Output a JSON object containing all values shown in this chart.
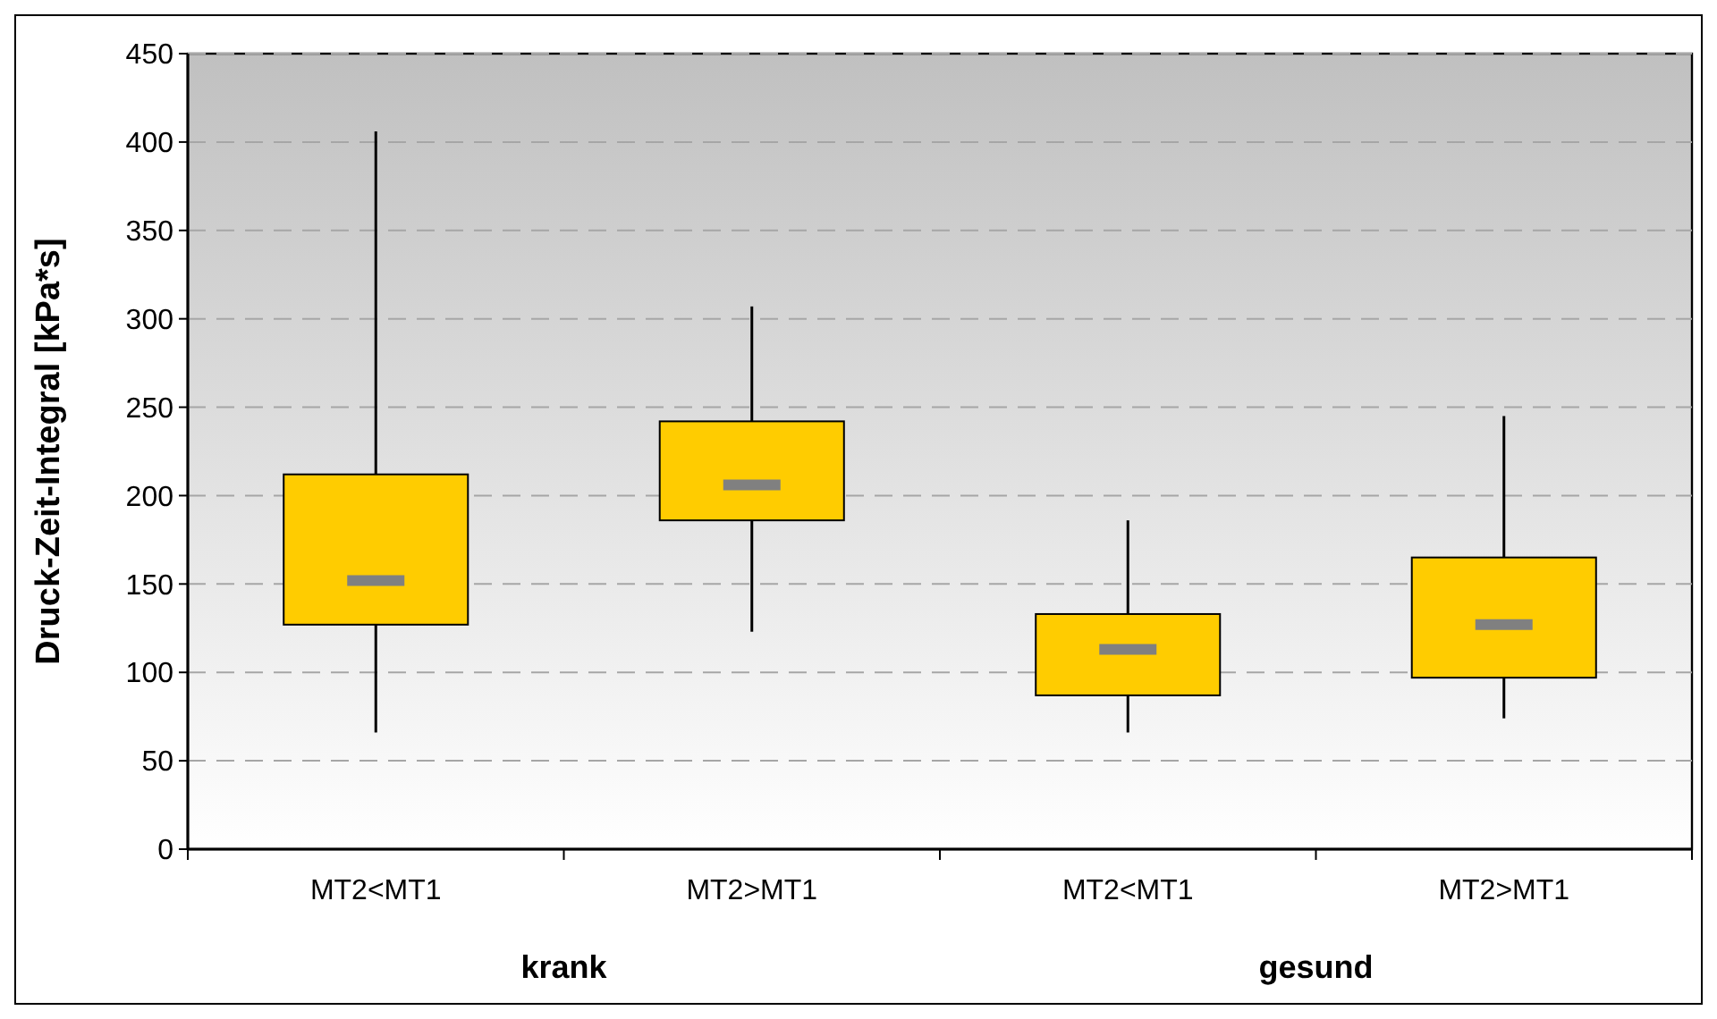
{
  "chart_data": {
    "type": "box",
    "ylabel": "Druck-Zeit-Integral [kPa*s]",
    "categories": [
      "MT2<MT1",
      "MT2>MT1",
      "MT2<MT1",
      "MT2>MT1"
    ],
    "series": [
      {
        "color": "#ffcc00",
        "boxes": [
          {
            "low": 66,
            "q1": 127,
            "median": 152,
            "q3": 212,
            "high": 406
          },
          {
            "low": 123,
            "q1": 186,
            "median": 206,
            "q3": 242,
            "high": 307
          },
          {
            "low": 66,
            "q1": 87,
            "median": 113,
            "q3": 133,
            "high": 186
          },
          {
            "low": 74,
            "q1": 97,
            "median": 127,
            "q3": 165,
            "high": 245
          }
        ]
      }
    ],
    "ylim": [
      0,
      450
    ],
    "yticks": [
      0,
      50,
      100,
      150,
      200,
      250,
      300,
      350,
      400,
      450
    ],
    "grid": "y",
    "annotations": [
      "krank",
      "gesund"
    ]
  }
}
